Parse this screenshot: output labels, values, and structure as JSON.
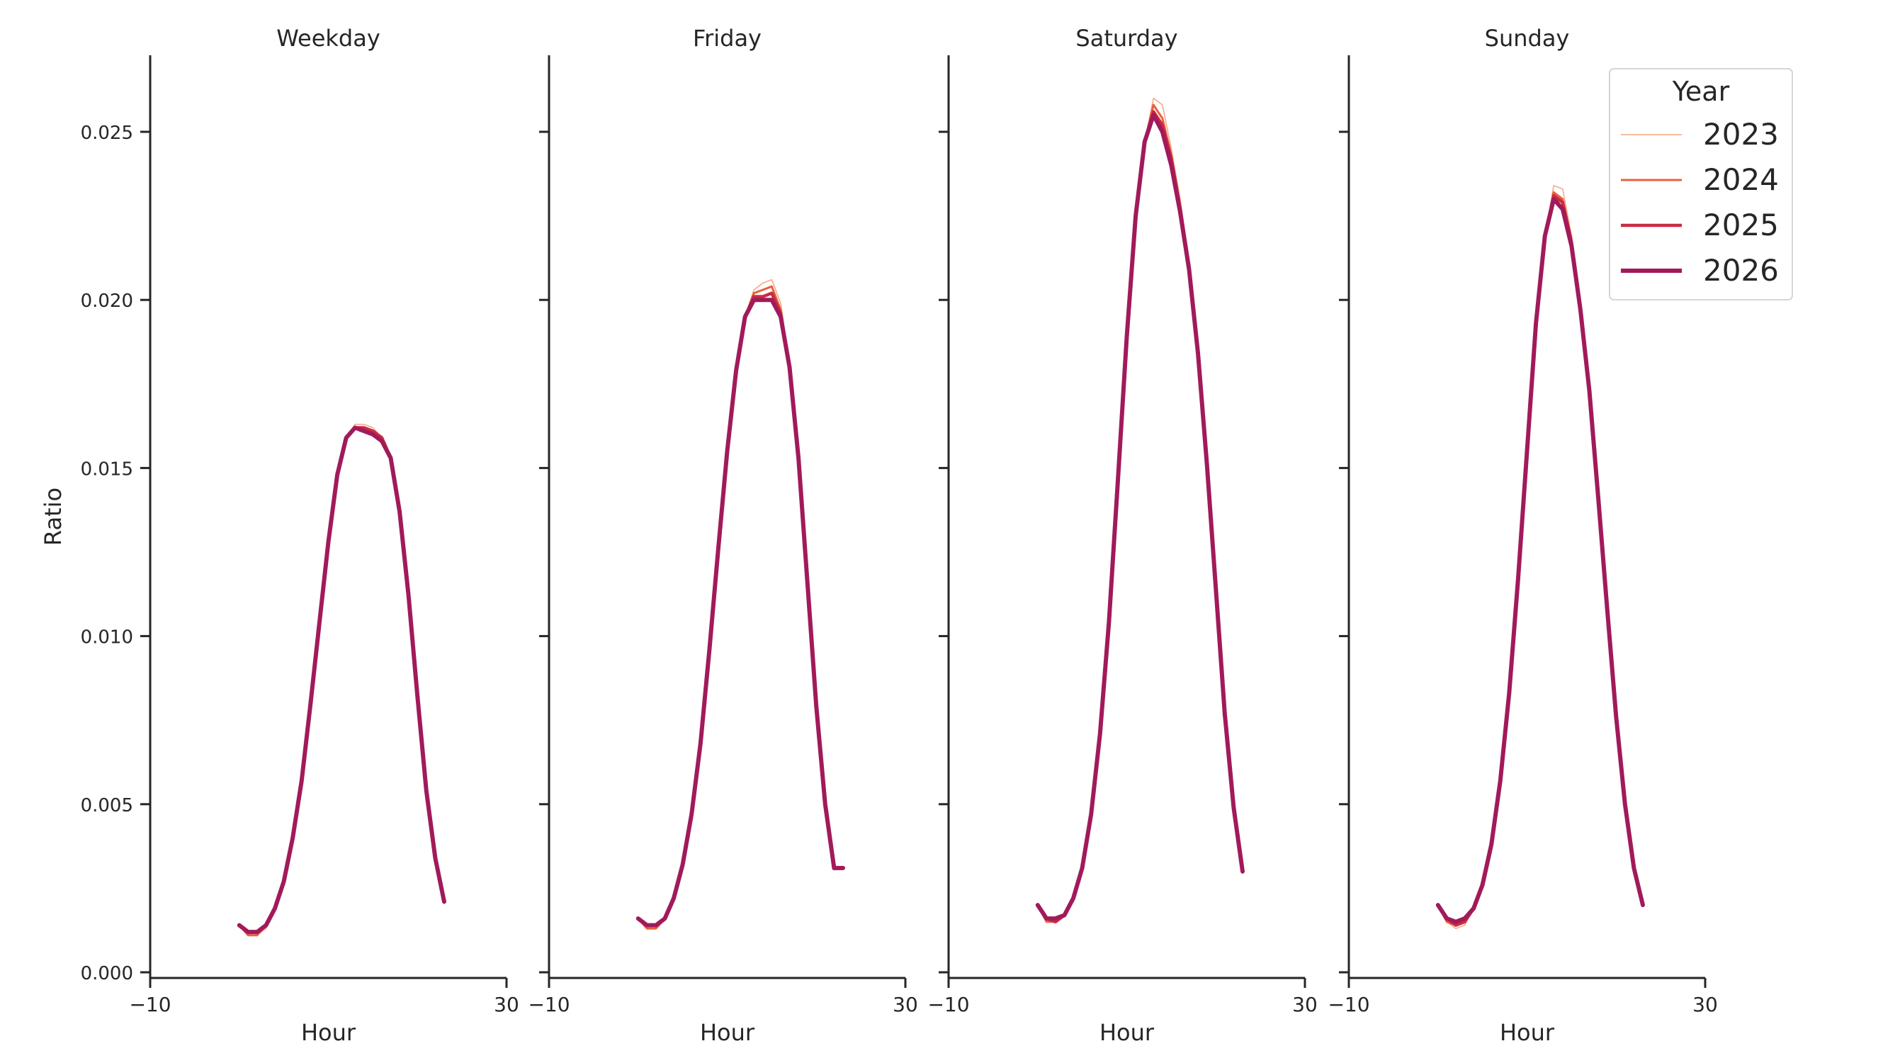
{
  "chart_data": {
    "type": "line",
    "ylabel": "Ratio",
    "xlabel": "Hour",
    "xlim": [
      -10,
      30
    ],
    "ylim": [
      0,
      0.0272
    ],
    "x_ticks": [
      -10,
      30
    ],
    "x_tick_labels": [
      "−10",
      "30"
    ],
    "y_ticks": [
      0.0,
      0.005,
      0.01,
      0.015,
      0.02,
      0.025
    ],
    "y_tick_labels": [
      "0.000",
      "0.005",
      "0.010",
      "0.015",
      "0.020",
      "0.025"
    ],
    "grid": false,
    "legend": {
      "title": "Year",
      "placement": "top-right",
      "entries": [
        "2023",
        "2024",
        "2025",
        "2026"
      ]
    },
    "series_styles": [
      {
        "name": "2023",
        "color": "#f4a582",
        "width": 1.5
      },
      {
        "name": "2024",
        "color": "#e8603c",
        "width": 3
      },
      {
        "name": "2025",
        "color": "#cb2b41",
        "width": 4.5
      },
      {
        "name": "2026",
        "color": "#a11a5b",
        "width": 6
      }
    ],
    "panels": [
      {
        "title": "Weekday",
        "x": [
          0,
          1,
          2,
          3,
          4,
          5,
          6,
          7,
          8,
          9,
          10,
          11,
          12,
          13,
          14,
          15,
          16,
          17,
          18,
          19,
          20,
          21,
          22,
          23
        ],
        "series": [
          {
            "name": "2023",
            "values": [
              0.0014,
              0.0011,
              0.0011,
              0.0013,
              0.0018,
              0.0027,
              0.0039,
              0.0057,
              0.008,
              0.0104,
              0.0128,
              0.0148,
              0.0159,
              0.0163,
              0.0163,
              0.0162,
              0.0159,
              0.0153,
              0.0137,
              0.0112,
              0.0082,
              0.0054,
              0.0034,
              0.0021
            ]
          },
          {
            "name": "2024",
            "values": [
              0.0014,
              0.0011,
              0.0011,
              0.0014,
              0.0019,
              0.0027,
              0.004,
              0.0057,
              0.008,
              0.0104,
              0.0128,
              0.0148,
              0.0159,
              0.0162,
              0.0162,
              0.0161,
              0.0159,
              0.0153,
              0.0137,
              0.0112,
              0.0082,
              0.0054,
              0.0034,
              0.0021
            ]
          },
          {
            "name": "2025",
            "values": [
              0.0014,
              0.0012,
              0.0012,
              0.0014,
              0.0019,
              0.0027,
              0.004,
              0.0057,
              0.008,
              0.0104,
              0.0128,
              0.0148,
              0.0159,
              0.0162,
              0.0162,
              0.0161,
              0.0159,
              0.0153,
              0.0137,
              0.0112,
              0.0082,
              0.0054,
              0.0034,
              0.0021
            ]
          },
          {
            "name": "2026",
            "values": [
              0.0014,
              0.0012,
              0.0012,
              0.0014,
              0.0019,
              0.0027,
              0.004,
              0.0057,
              0.008,
              0.0104,
              0.0128,
              0.0148,
              0.0159,
              0.0162,
              0.0161,
              0.016,
              0.0158,
              0.0153,
              0.0137,
              0.0112,
              0.0082,
              0.0054,
              0.0034,
              0.0021
            ]
          }
        ]
      },
      {
        "title": "Friday",
        "x": [
          0,
          1,
          2,
          3,
          4,
          5,
          6,
          7,
          8,
          9,
          10,
          11,
          12,
          13,
          14,
          15,
          16,
          17,
          18,
          19,
          20,
          21,
          22,
          23
        ],
        "series": [
          {
            "name": "2023",
            "values": [
              0.0016,
              0.0013,
              0.0013,
              0.0016,
              0.0022,
              0.0032,
              0.0047,
              0.0068,
              0.0096,
              0.0126,
              0.0155,
              0.0179,
              0.0195,
              0.0203,
              0.0205,
              0.0206,
              0.0199,
              0.0181,
              0.0153,
              0.0116,
              0.0079,
              0.005,
              0.0031,
              0.0031
            ]
          },
          {
            "name": "2024",
            "values": [
              0.0016,
              0.0013,
              0.0013,
              0.0016,
              0.0022,
              0.0032,
              0.0047,
              0.0068,
              0.0096,
              0.0126,
              0.0155,
              0.0179,
              0.0195,
              0.0202,
              0.0203,
              0.0204,
              0.0197,
              0.018,
              0.0153,
              0.0116,
              0.0079,
              0.005,
              0.0031,
              0.0031
            ]
          },
          {
            "name": "2025",
            "values": [
              0.0016,
              0.0014,
              0.0014,
              0.0016,
              0.0022,
              0.0032,
              0.0047,
              0.0068,
              0.0096,
              0.0126,
              0.0155,
              0.0179,
              0.0195,
              0.0201,
              0.0201,
              0.0202,
              0.0196,
              0.018,
              0.0153,
              0.0116,
              0.0079,
              0.005,
              0.0031,
              0.0031
            ]
          },
          {
            "name": "2026",
            "values": [
              0.0016,
              0.0014,
              0.0014,
              0.0016,
              0.0022,
              0.0032,
              0.0047,
              0.0068,
              0.0096,
              0.0126,
              0.0155,
              0.0179,
              0.0195,
              0.02,
              0.02,
              0.02,
              0.0195,
              0.018,
              0.0153,
              0.0116,
              0.0079,
              0.005,
              0.0031,
              0.0031
            ]
          }
        ]
      },
      {
        "title": "Saturday",
        "x": [
          0,
          1,
          2,
          3,
          4,
          5,
          6,
          7,
          8,
          9,
          10,
          11,
          12,
          13,
          14,
          15,
          16,
          17,
          18,
          19,
          20,
          21,
          22,
          23
        ],
        "series": [
          {
            "name": "2023",
            "values": [
              0.002,
              0.0015,
              0.0015,
              0.0017,
              0.0022,
              0.0031,
              0.0047,
              0.0071,
              0.0104,
              0.0146,
              0.0189,
              0.0225,
              0.0247,
              0.026,
              0.0258,
              0.0245,
              0.023,
              0.0211,
              0.0185,
              0.0151,
              0.0114,
              0.0077,
              0.0049,
              0.003
            ]
          },
          {
            "name": "2024",
            "values": [
              0.002,
              0.0015,
              0.0015,
              0.0017,
              0.0022,
              0.0031,
              0.0047,
              0.0071,
              0.0104,
              0.0146,
              0.0189,
              0.0225,
              0.0247,
              0.0258,
              0.0254,
              0.0243,
              0.0228,
              0.021,
              0.0185,
              0.0151,
              0.0114,
              0.0077,
              0.0049,
              0.003
            ]
          },
          {
            "name": "2025",
            "values": [
              0.002,
              0.0016,
              0.0015,
              0.0017,
              0.0022,
              0.0031,
              0.0047,
              0.0071,
              0.0104,
              0.0146,
              0.0189,
              0.0225,
              0.0247,
              0.0256,
              0.0252,
              0.0242,
              0.0227,
              0.021,
              0.0185,
              0.0151,
              0.0114,
              0.0077,
              0.0049,
              0.003
            ]
          },
          {
            "name": "2026",
            "values": [
              0.002,
              0.0016,
              0.0016,
              0.0017,
              0.0022,
              0.0031,
              0.0047,
              0.0071,
              0.0104,
              0.0146,
              0.0189,
              0.0225,
              0.0247,
              0.0255,
              0.025,
              0.024,
              0.0226,
              0.0209,
              0.0184,
              0.0151,
              0.0114,
              0.0077,
              0.0049,
              0.003
            ]
          }
        ]
      },
      {
        "title": "Sunday",
        "x": [
          0,
          1,
          2,
          3,
          4,
          5,
          6,
          7,
          8,
          9,
          10,
          11,
          12,
          13,
          14,
          15,
          16,
          17,
          18,
          19,
          20,
          21,
          22,
          23
        ],
        "series": [
          {
            "name": "2023",
            "values": [
              0.002,
              0.0015,
              0.0013,
              0.0014,
              0.0019,
              0.0026,
              0.0038,
              0.0057,
              0.0083,
              0.0117,
              0.0155,
              0.0193,
              0.0219,
              0.0234,
              0.0233,
              0.0219,
              0.0199,
              0.0173,
              0.0141,
              0.0108,
              0.0076,
              0.005,
              0.0031,
              0.002
            ]
          },
          {
            "name": "2024",
            "values": [
              0.002,
              0.0015,
              0.0014,
              0.0015,
              0.0019,
              0.0026,
              0.0038,
              0.0057,
              0.0083,
              0.0117,
              0.0155,
              0.0193,
              0.0219,
              0.0232,
              0.023,
              0.0218,
              0.0198,
              0.0173,
              0.0141,
              0.0108,
              0.0076,
              0.005,
              0.0031,
              0.002
            ]
          },
          {
            "name": "2025",
            "values": [
              0.002,
              0.0016,
              0.0014,
              0.0015,
              0.0019,
              0.0026,
              0.0038,
              0.0057,
              0.0083,
              0.0117,
              0.0155,
              0.0193,
              0.0219,
              0.0231,
              0.0229,
              0.0217,
              0.0198,
              0.0173,
              0.0141,
              0.0108,
              0.0076,
              0.005,
              0.0031,
              0.002
            ]
          },
          {
            "name": "2026",
            "values": [
              0.002,
              0.0016,
              0.0015,
              0.0016,
              0.0019,
              0.0026,
              0.0038,
              0.0057,
              0.0083,
              0.0117,
              0.0155,
              0.0193,
              0.0219,
              0.023,
              0.0227,
              0.0216,
              0.0197,
              0.0173,
              0.0141,
              0.0108,
              0.0076,
              0.005,
              0.0031,
              0.002
            ]
          }
        ]
      }
    ]
  }
}
